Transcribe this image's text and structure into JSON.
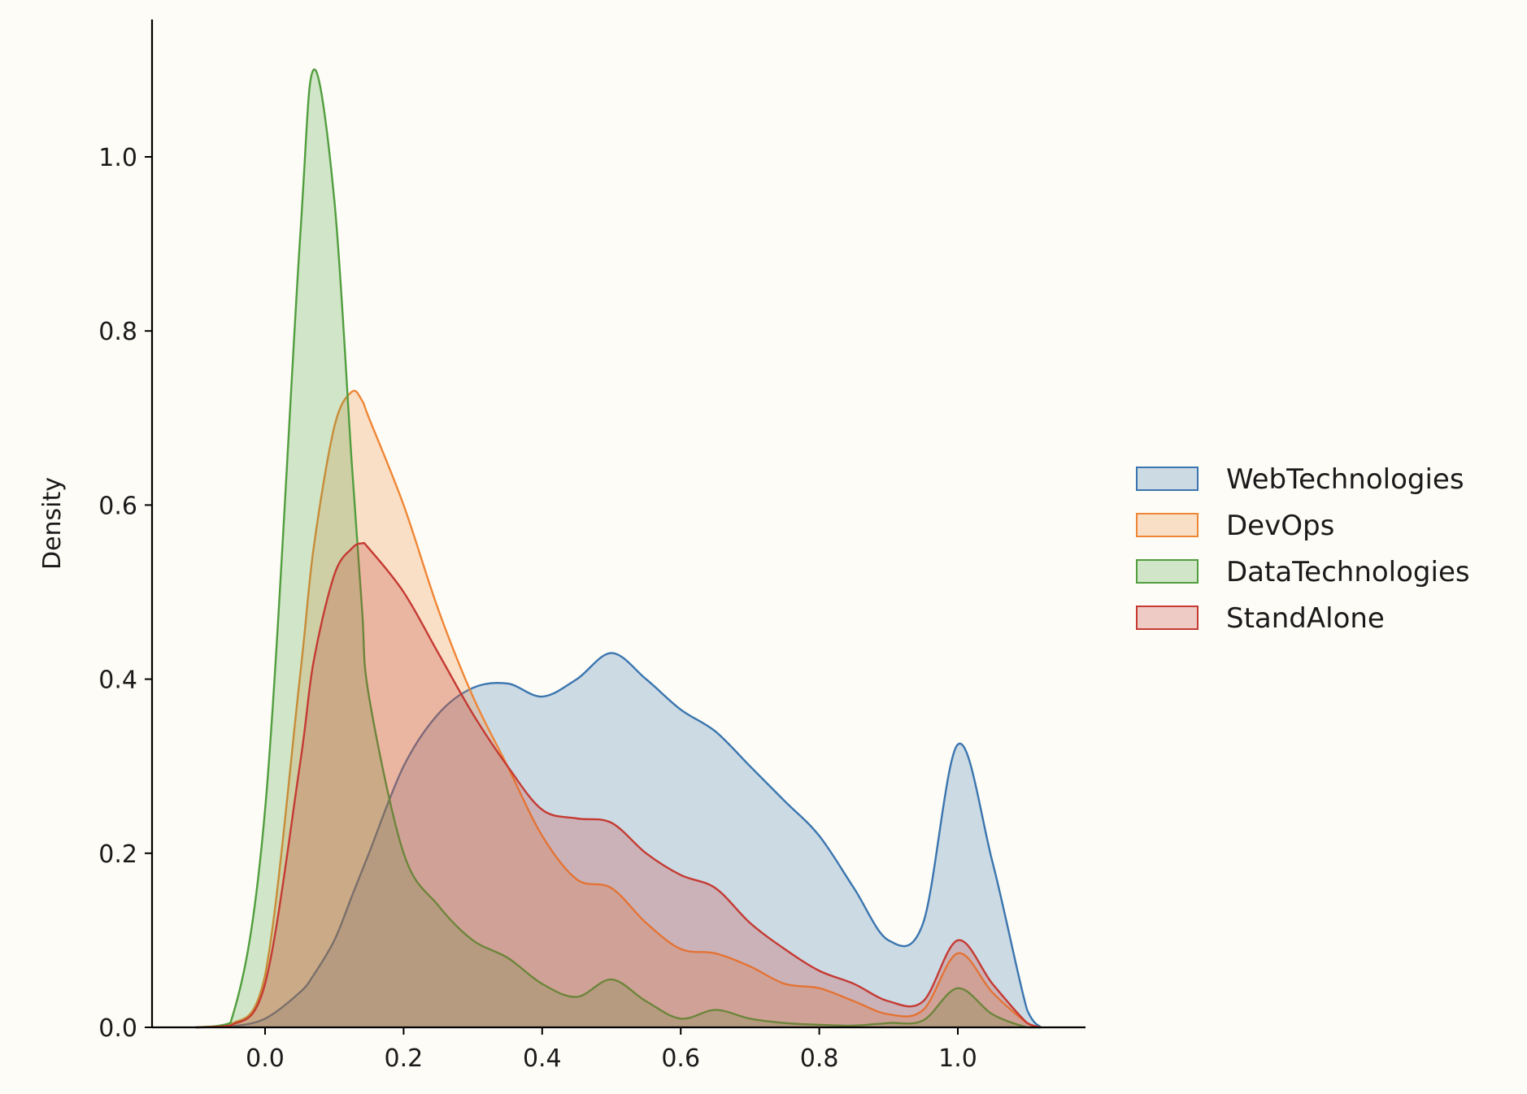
{
  "chart_data": {
    "type": "area",
    "xlabel": "",
    "ylabel": "Density",
    "xlim": [
      -0.17,
      1.18
    ],
    "ylim": [
      0,
      1.12
    ],
    "xticks": [
      "0.0",
      "0.2",
      "0.4",
      "0.6",
      "0.8",
      "1.0"
    ],
    "yticks": [
      "0.0",
      "0.2",
      "0.4",
      "0.6",
      "0.8",
      "1.0"
    ],
    "legend_position": "right",
    "grid": false,
    "x": [
      -0.1,
      -0.05,
      0.0,
      0.05,
      0.07,
      0.1,
      0.125,
      0.14,
      0.15,
      0.2,
      0.25,
      0.3,
      0.35,
      0.4,
      0.45,
      0.5,
      0.55,
      0.6,
      0.65,
      0.7,
      0.75,
      0.8,
      0.85,
      0.9,
      0.95,
      1.0,
      1.05,
      1.1,
      1.12
    ],
    "series": [
      {
        "name": "WebTechnologies",
        "color": "#3a75af",
        "values": [
          0.0,
          0.001,
          0.01,
          0.04,
          0.06,
          0.1,
          0.15,
          0.18,
          0.2,
          0.3,
          0.36,
          0.39,
          0.395,
          0.38,
          0.4,
          0.43,
          0.4,
          0.365,
          0.34,
          0.3,
          0.26,
          0.22,
          0.16,
          0.1,
          0.12,
          0.325,
          0.19,
          0.02,
          0.0
        ]
      },
      {
        "name": "DevOps",
        "color": "#ef8636",
        "values": [
          0.0,
          0.003,
          0.06,
          0.4,
          0.55,
          0.69,
          0.73,
          0.72,
          0.7,
          0.6,
          0.48,
          0.38,
          0.3,
          0.22,
          0.17,
          0.16,
          0.12,
          0.09,
          0.085,
          0.07,
          0.05,
          0.045,
          0.03,
          0.015,
          0.02,
          0.085,
          0.04,
          0.005,
          0.0
        ]
      },
      {
        "name": "DataTechnologies",
        "color": "#519e3e",
        "values": [
          0.0,
          0.005,
          0.25,
          0.9,
          1.1,
          0.95,
          0.65,
          0.48,
          0.38,
          0.2,
          0.14,
          0.1,
          0.08,
          0.05,
          0.035,
          0.055,
          0.03,
          0.01,
          0.02,
          0.01,
          0.005,
          0.003,
          0.002,
          0.005,
          0.008,
          0.045,
          0.015,
          0.0,
          0.0
        ]
      },
      {
        "name": "StandAlone",
        "color": "#c53a32",
        "values": [
          0.0,
          0.002,
          0.05,
          0.3,
          0.42,
          0.52,
          0.55,
          0.556,
          0.55,
          0.5,
          0.43,
          0.36,
          0.3,
          0.25,
          0.24,
          0.235,
          0.2,
          0.175,
          0.16,
          0.12,
          0.09,
          0.065,
          0.05,
          0.03,
          0.03,
          0.1,
          0.05,
          0.005,
          0.0
        ]
      }
    ]
  }
}
